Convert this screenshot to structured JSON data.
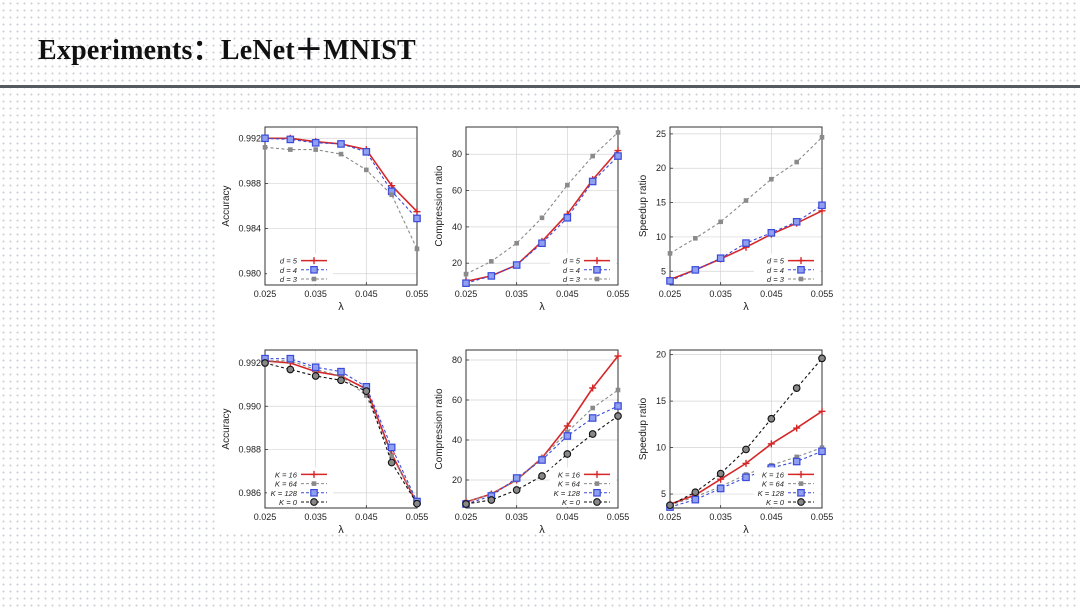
{
  "slide": {
    "title": "Experiments：LeNet＋MNIST"
  },
  "chart_data": [
    {
      "type": "line",
      "row": 0,
      "col": 0,
      "xlabel": "λ",
      "ylabel": "Accuracy",
      "xlim": [
        0.025,
        0.055
      ],
      "ylim": [
        0.979,
        0.993
      ],
      "xticks": [
        0.025,
        0.035,
        0.045,
        0.055
      ],
      "yticks": [
        0.98,
        0.984,
        0.988,
        0.992
      ],
      "ydecimals": 3,
      "grid": true,
      "legend": "bottom-left",
      "x": [
        0.025,
        0.03,
        0.035,
        0.04,
        0.045,
        0.05,
        0.055
      ],
      "series": [
        {
          "name": "d = 5",
          "color": "#d62728",
          "marker": "plus",
          "dash": false,
          "values": [
            0.992,
            0.992,
            0.9917,
            0.9915,
            0.991,
            0.9878,
            0.9855
          ]
        },
        {
          "name": "d = 4",
          "color": "#3b4ad9",
          "marker": "square",
          "dash": true,
          "values": [
            0.992,
            0.9919,
            0.9916,
            0.9915,
            0.9908,
            0.9873,
            0.9849
          ]
        },
        {
          "name": "d = 3",
          "color": "#8a8a8a",
          "marker": "smallsquare",
          "dash": true,
          "values": [
            0.9912,
            0.991,
            0.991,
            0.9906,
            0.9892,
            0.987,
            0.9822
          ]
        }
      ]
    },
    {
      "type": "line",
      "row": 0,
      "col": 1,
      "xlabel": "λ",
      "ylabel": "Compression ratio",
      "xlim": [
        0.025,
        0.055
      ],
      "ylim": [
        8,
        95
      ],
      "xticks": [
        0.025,
        0.035,
        0.045,
        0.055
      ],
      "yticks": [
        20,
        40,
        60,
        80
      ],
      "ydecimals": 0,
      "grid": true,
      "legend": "bottom-right",
      "x": [
        0.025,
        0.03,
        0.035,
        0.04,
        0.045,
        0.05,
        0.055
      ],
      "series": [
        {
          "name": "d = 5",
          "color": "#d62728",
          "marker": "plus",
          "dash": false,
          "values": [
            10,
            13,
            19,
            32,
            47,
            66,
            82
          ]
        },
        {
          "name": "d = 4",
          "color": "#3b4ad9",
          "marker": "square",
          "dash": true,
          "values": [
            9,
            13,
            19,
            31,
            45,
            65,
            79
          ]
        },
        {
          "name": "d = 3",
          "color": "#8a8a8a",
          "marker": "smallsquare",
          "dash": true,
          "values": [
            14,
            21,
            31,
            45,
            63,
            79,
            92
          ]
        }
      ]
    },
    {
      "type": "line",
      "row": 0,
      "col": 2,
      "xlabel": "λ",
      "ylabel": "Speedup ratio",
      "xlim": [
        0.025,
        0.055
      ],
      "ylim": [
        3,
        26
      ],
      "xticks": [
        0.025,
        0.035,
        0.045,
        0.055
      ],
      "yticks": [
        5,
        10,
        15,
        20,
        25
      ],
      "ydecimals": 0,
      "grid": true,
      "legend": "bottom-right",
      "x": [
        0.025,
        0.03,
        0.035,
        0.04,
        0.045,
        0.05,
        0.055
      ],
      "series": [
        {
          "name": "d = 5",
          "color": "#d62728",
          "marker": "plus",
          "dash": false,
          "values": [
            3.8,
            5.2,
            6.8,
            8.5,
            10.4,
            12.0,
            13.8
          ]
        },
        {
          "name": "d = 4",
          "color": "#3b4ad9",
          "marker": "square",
          "dash": true,
          "values": [
            3.6,
            5.2,
            6.9,
            9.1,
            10.6,
            12.2,
            14.6
          ]
        },
        {
          "name": "d = 3",
          "color": "#8a8a8a",
          "marker": "smallsquare",
          "dash": true,
          "values": [
            7.6,
            9.8,
            12.2,
            15.3,
            18.4,
            20.9,
            24.5
          ]
        }
      ]
    },
    {
      "type": "line",
      "row": 1,
      "col": 0,
      "xlabel": "λ",
      "ylabel": "Accuracy",
      "xlim": [
        0.025,
        0.055
      ],
      "ylim": [
        0.9853,
        0.9926
      ],
      "xticks": [
        0.025,
        0.035,
        0.045,
        0.055
      ],
      "yticks": [
        0.986,
        0.988,
        0.99,
        0.992
      ],
      "ydecimals": 3,
      "grid": true,
      "legend": "bottom-left",
      "x": [
        0.025,
        0.03,
        0.035,
        0.04,
        0.045,
        0.05,
        0.055
      ],
      "series": [
        {
          "name": "K = 16",
          "color": "#d62728",
          "marker": "plus",
          "dash": false,
          "values": [
            0.9921,
            0.992,
            0.9916,
            0.9914,
            0.9908,
            0.9878,
            0.9855
          ]
        },
        {
          "name": "K = 64",
          "color": "#8a8a8a",
          "marker": "smallsquare",
          "dash": true,
          "values": [
            0.9921,
            0.9921,
            0.9917,
            0.9914,
            0.9905,
            0.9877,
            0.9856
          ]
        },
        {
          "name": "K = 128",
          "color": "#3b4ad9",
          "marker": "square",
          "dash": true,
          "values": [
            0.9922,
            0.9922,
            0.9918,
            0.9916,
            0.9909,
            0.9881,
            0.9856
          ]
        },
        {
          "name": "K = 0",
          "color": "#111111",
          "marker": "circle",
          "dash": true,
          "values": [
            0.992,
            0.9917,
            0.9914,
            0.9912,
            0.9907,
            0.9874,
            0.9855
          ]
        }
      ]
    },
    {
      "type": "line",
      "row": 1,
      "col": 1,
      "xlabel": "λ",
      "ylabel": "Compression ratio",
      "xlim": [
        0.025,
        0.055
      ],
      "ylim": [
        6,
        85
      ],
      "xticks": [
        0.025,
        0.035,
        0.045,
        0.055
      ],
      "yticks": [
        20,
        40,
        60,
        80
      ],
      "ydecimals": 0,
      "grid": true,
      "legend": "bottom-right",
      "x": [
        0.025,
        0.03,
        0.035,
        0.04,
        0.045,
        0.05,
        0.055
      ],
      "series": [
        {
          "name": "K = 16",
          "color": "#d62728",
          "marker": "plus",
          "dash": false,
          "values": [
            9,
            13,
            20,
            31,
            47,
            66,
            82
          ]
        },
        {
          "name": "K = 64",
          "color": "#8a8a8a",
          "marker": "smallsquare",
          "dash": true,
          "values": [
            9,
            13,
            20,
            31,
            44,
            56,
            65
          ]
        },
        {
          "name": "K = 128",
          "color": "#3b4ad9",
          "marker": "square",
          "dash": true,
          "values": [
            8,
            12,
            21,
            30,
            42,
            51,
            57
          ]
        },
        {
          "name": "K = 0",
          "color": "#111111",
          "marker": "circle",
          "dash": true,
          "values": [
            8,
            10,
            15,
            22,
            33,
            43,
            52
          ]
        }
      ]
    },
    {
      "type": "line",
      "row": 1,
      "col": 2,
      "xlabel": "λ",
      "ylabel": "Speedup ratio",
      "xlim": [
        0.025,
        0.055
      ],
      "ylim": [
        3.5,
        20.5
      ],
      "xticks": [
        0.025,
        0.035,
        0.045,
        0.055
      ],
      "yticks": [
        5,
        10,
        15,
        20
      ],
      "ydecimals": 0,
      "grid": true,
      "legend": "bottom-right",
      "x": [
        0.025,
        0.03,
        0.035,
        0.04,
        0.045,
        0.05,
        0.055
      ],
      "series": [
        {
          "name": "K = 16",
          "color": "#d62728",
          "marker": "plus",
          "dash": false,
          "values": [
            3.9,
            4.9,
            6.6,
            8.3,
            10.4,
            12.1,
            13.9
          ]
        },
        {
          "name": "K = 64",
          "color": "#8a8a8a",
          "marker": "smallsquare",
          "dash": true,
          "values": [
            3.8,
            4.7,
            5.8,
            7.1,
            8.1,
            9.0,
            10.0
          ]
        },
        {
          "name": "K = 128",
          "color": "#3b4ad9",
          "marker": "square",
          "dash": true,
          "values": [
            3.6,
            4.4,
            5.6,
            6.8,
            7.8,
            8.5,
            9.6
          ]
        },
        {
          "name": "K = 0",
          "color": "#111111",
          "marker": "circle",
          "dash": true,
          "values": [
            3.8,
            5.2,
            7.2,
            9.8,
            13.1,
            16.4,
            19.6
          ]
        }
      ]
    }
  ]
}
